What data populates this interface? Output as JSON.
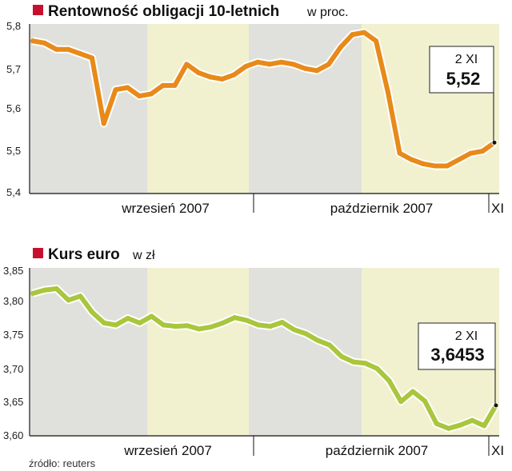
{
  "colors": {
    "title_marker": "#c8102e",
    "band_gray": "#e0e0dc",
    "band_yellow": "#f1f1d0",
    "line_orange": "#e88a1a",
    "line_green": "#a9c63c",
    "axis": "#111111"
  },
  "source": "źródło: reuters",
  "chart_data": [
    {
      "type": "line",
      "title": "Rentowność obligacji 10-letnich",
      "subtitle": "w proc.",
      "yticks": [
        "5,8",
        "5,7",
        "5,6",
        "5,5",
        "5,4"
      ],
      "ylim": [
        5.4,
        5.8
      ],
      "month_labels": [
        "wrzesień 2007",
        "październik 2007",
        "XI"
      ],
      "annotation": {
        "date": "2 XI",
        "value": "5,52"
      },
      "values": [
        5.76,
        5.755,
        5.74,
        5.74,
        5.73,
        5.72,
        5.565,
        5.645,
        5.65,
        5.63,
        5.635,
        5.655,
        5.655,
        5.705,
        5.685,
        5.675,
        5.67,
        5.68,
        5.7,
        5.71,
        5.705,
        5.71,
        5.705,
        5.695,
        5.69,
        5.705,
        5.745,
        5.775,
        5.78,
        5.76,
        5.64,
        5.495,
        5.48,
        5.47,
        5.465,
        5.465,
        5.48,
        5.495,
        5.5,
        5.52
      ]
    },
    {
      "type": "line",
      "title": "Kurs euro",
      "subtitle": "w zł",
      "yticks": [
        "3,85",
        "3,80",
        "3,75",
        "3,70",
        "3,65",
        "3,60"
      ],
      "ylim": [
        3.6,
        3.85
      ],
      "month_labels": [
        "wrzesień 2007",
        "październik 2007",
        "XI"
      ],
      "annotation": {
        "date": "2 XI",
        "value": "3,6453"
      },
      "values": [
        3.812,
        3.817,
        3.819,
        3.802,
        3.808,
        3.784,
        3.768,
        3.765,
        3.775,
        3.768,
        3.778,
        3.765,
        3.763,
        3.764,
        3.759,
        3.762,
        3.768,
        3.776,
        3.772,
        3.765,
        3.763,
        3.769,
        3.758,
        3.752,
        3.742,
        3.735,
        3.718,
        3.71,
        3.708,
        3.7,
        3.682,
        3.651,
        3.666,
        3.652,
        3.618,
        3.611,
        3.616,
        3.623,
        3.615,
        3.6453
      ]
    }
  ]
}
